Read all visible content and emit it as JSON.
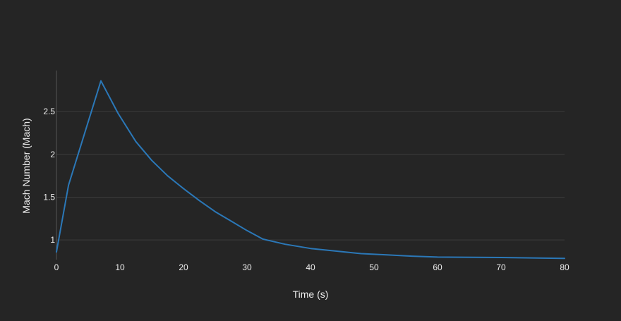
{
  "chart_data": {
    "type": "line",
    "title": "",
    "xlabel": "Time (s)",
    "ylabel": "Mach Number (Mach)",
    "xlim": [
      0,
      80
    ],
    "ylim": [
      0.77,
      2.98
    ],
    "x_ticks": [
      0,
      10,
      20,
      30,
      40,
      50,
      60,
      70,
      80
    ],
    "y_ticks": [
      1,
      1.5,
      2,
      2.5
    ],
    "grid": "horizontal",
    "legend": "none",
    "colors": {
      "background": "#252525",
      "line": "#2b78b8",
      "grid": "#3c3c3c",
      "axis": "#555555",
      "text": "#eeeeee"
    },
    "series": [
      {
        "x": [
          0,
          1.9,
          7,
          9.7,
          12.5,
          15,
          17.5,
          20,
          22.5,
          25,
          27.5,
          30,
          32.5,
          36,
          40,
          44,
          48,
          52,
          56,
          60,
          70,
          80
        ],
        "y": [
          0.86,
          1.64,
          2.86,
          2.48,
          2.15,
          1.93,
          1.75,
          1.6,
          1.46,
          1.33,
          1.22,
          1.11,
          1.01,
          0.95,
          0.9,
          0.87,
          0.84,
          0.825,
          0.81,
          0.8,
          0.795,
          0.785
        ]
      }
    ]
  }
}
